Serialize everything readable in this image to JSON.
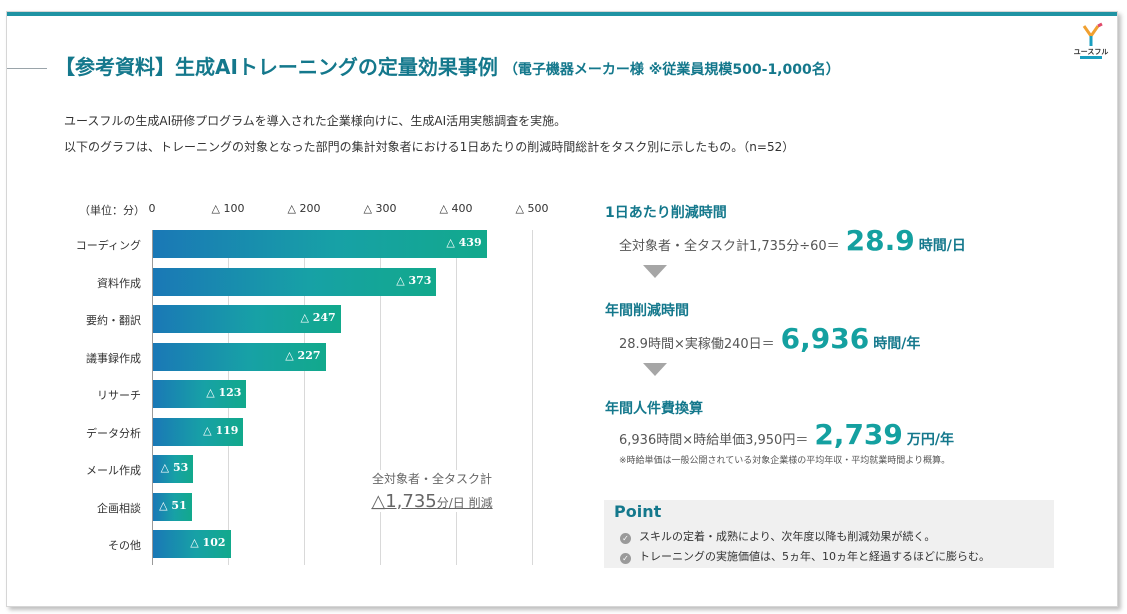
{
  "title": {
    "main": "【参考資料】生成AIトレーニングの定量効果事例",
    "sub": "（電子機器メーカー様 ※従業員規模500-1,000名）"
  },
  "logo": {
    "text": "ユースフル"
  },
  "description": {
    "line1": "ユースフルの生成AI研修プログラムを導入された企業様向けに、生成AI活用実態調査を実施。",
    "line2": "以下のグラフは、トレーニングの対象となった部門の集計対象者における1日あたりの削減時間総計をタスク別に示したもの。（n=52）"
  },
  "chart_data": {
    "type": "bar",
    "orientation": "horizontal",
    "unit_label": "（単位：分）",
    "xlim": [
      0,
      500
    ],
    "tick_labels": [
      "0",
      "△ 100",
      "△ 200",
      "△ 300",
      "△ 400",
      "△ 500"
    ],
    "categories": [
      "コーディング",
      "資料作成",
      "要約・翻訳",
      "議事録作成",
      "リサーチ",
      "データ分析",
      "メール作成",
      "企画相談",
      "その他"
    ],
    "values": [
      439,
      373,
      247,
      227,
      123,
      119,
      53,
      51,
      102
    ],
    "data_labels": [
      "△ 439",
      "△ 373",
      "△ 247",
      "△ 227",
      "△ 123",
      "△ 119",
      "△ 53",
      "△ 51",
      "△ 102"
    ],
    "annotation": {
      "caption": "全対象者・全タスク計",
      "value": "△1,735",
      "unit": "分/日 削減"
    },
    "colors": {
      "bar_start": "#1a78b6",
      "bar_end": "#12a98c"
    }
  },
  "summary": {
    "daily": {
      "title": "1日あたり削減時間",
      "formula": "全対象者・全タスク計1,735分÷60＝",
      "value": "28.9",
      "unit": "時間/日"
    },
    "yearly": {
      "title": "年間削減時間",
      "formula": "28.9時間×実稼働240日＝",
      "value": "6,936",
      "unit": "時間/年"
    },
    "cost": {
      "title": "年間人件費換算",
      "formula": "6,936時間×時給単価3,950円＝",
      "value": "2,739",
      "unit": "万円/年"
    },
    "note": "※時給単価は一般公開されている対象企業様の平均年収・平均就業時間より概算。"
  },
  "point": {
    "title": "Point",
    "items": [
      "スキルの定着・成熟により、次年度以降も削減効果が続く。",
      "トレーニングの実施価値は、5ヵ年、10ヵ年と経過するほどに膨らむ。"
    ]
  },
  "colors": {
    "accent": "#14788c",
    "highlight": "#14a0a0",
    "topbar": "#1f93a3"
  }
}
